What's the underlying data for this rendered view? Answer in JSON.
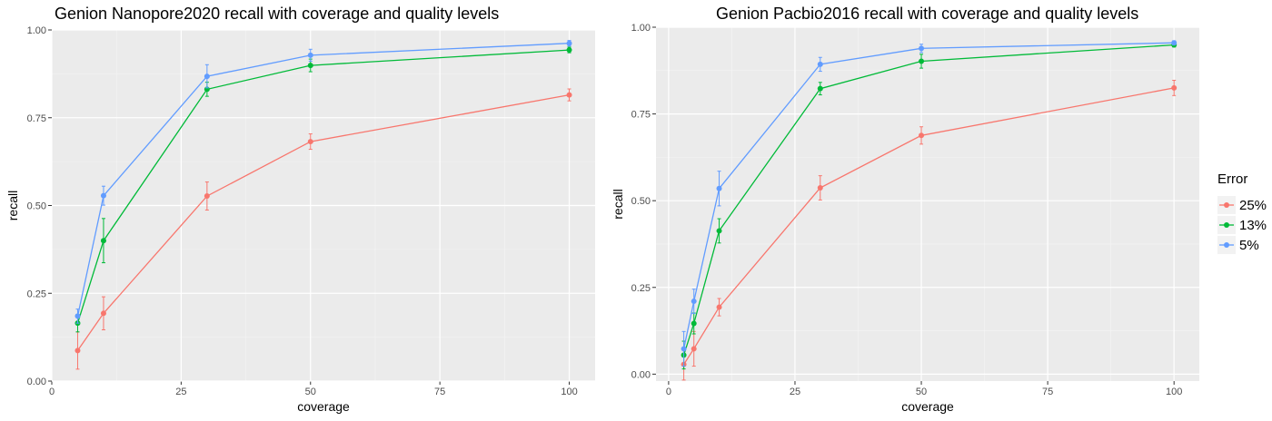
{
  "legend": {
    "title": "Error",
    "items": [
      {
        "label": "25%",
        "color": "#F8766D"
      },
      {
        "label": "13%",
        "color": "#00BA38"
      },
      {
        "label": "5%",
        "color": "#619CFF"
      }
    ]
  },
  "chart_data": [
    {
      "type": "line",
      "title": "Genion Nanopore2020 recall with coverage and quality levels",
      "xlabel": "coverage",
      "ylabel": "recall",
      "xlim": [
        0,
        105
      ],
      "ylim": [
        0,
        1.0
      ],
      "xticks": [
        0,
        25,
        50,
        75,
        100
      ],
      "xtick_labels": [
        "0",
        "25",
        "50",
        "75",
        "100"
      ],
      "yticks": [
        0,
        0.25,
        0.5,
        0.75,
        1.0
      ],
      "ytick_labels": [
        "0.00",
        "0.25",
        "0.50",
        "0.75",
        "1.00"
      ],
      "grid": true,
      "legend_position": "right",
      "series": [
        {
          "name": "25%",
          "color": "#F8766D",
          "x": [
            5,
            10,
            30,
            50,
            100
          ],
          "y": [
            0.087,
            0.193,
            0.527,
            0.682,
            0.815
          ],
          "err": [
            0.053,
            0.047,
            0.04,
            0.022,
            0.017
          ]
        },
        {
          "name": "13%",
          "color": "#00BA38",
          "x": [
            5,
            10,
            30,
            50,
            100
          ],
          "y": [
            0.165,
            0.4,
            0.831,
            0.899,
            0.943
          ],
          "err": [
            0.025,
            0.063,
            0.02,
            0.018,
            0.008
          ]
        },
        {
          "name": "5%",
          "color": "#619CFF",
          "x": [
            5,
            10,
            30,
            50,
            100
          ],
          "y": [
            0.185,
            0.528,
            0.868,
            0.928,
            0.962
          ],
          "err": [
            0.02,
            0.027,
            0.033,
            0.017,
            0.008
          ]
        }
      ]
    },
    {
      "type": "line",
      "title": "Genion Pacbio2016 recall with coverage and quality levels",
      "xlabel": "coverage",
      "ylabel": "recall",
      "xlim": [
        -2.5,
        105
      ],
      "ylim": [
        -0.02,
        1.0
      ],
      "xticks": [
        0,
        25,
        50,
        75,
        100
      ],
      "xtick_labels": [
        "0",
        "25",
        "50",
        "75",
        "100"
      ],
      "yticks": [
        0,
        0.25,
        0.5,
        0.75,
        1.0
      ],
      "ytick_labels": [
        "0.00",
        "0.25",
        "0.50",
        "0.75",
        "1.00"
      ],
      "grid": true,
      "legend_position": "right",
      "series": [
        {
          "name": "25%",
          "color": "#F8766D",
          "x": [
            3,
            5,
            10,
            30,
            50,
            100
          ],
          "y": [
            0.028,
            0.073,
            0.193,
            0.537,
            0.688,
            0.825
          ],
          "err": [
            0.045,
            0.05,
            0.025,
            0.035,
            0.025,
            0.022
          ]
        },
        {
          "name": "13%",
          "color": "#00BA38",
          "x": [
            3,
            5,
            10,
            30,
            50,
            100
          ],
          "y": [
            0.055,
            0.146,
            0.413,
            0.823,
            0.902,
            0.949
          ],
          "err": [
            0.04,
            0.03,
            0.035,
            0.018,
            0.02,
            0.006
          ]
        },
        {
          "name": "5%",
          "color": "#619CFF",
          "x": [
            3,
            5,
            10,
            30,
            50,
            100
          ],
          "y": [
            0.073,
            0.21,
            0.535,
            0.893,
            0.939,
            0.955
          ],
          "err": [
            0.05,
            0.035,
            0.05,
            0.02,
            0.012,
            0.006
          ]
        }
      ]
    }
  ]
}
